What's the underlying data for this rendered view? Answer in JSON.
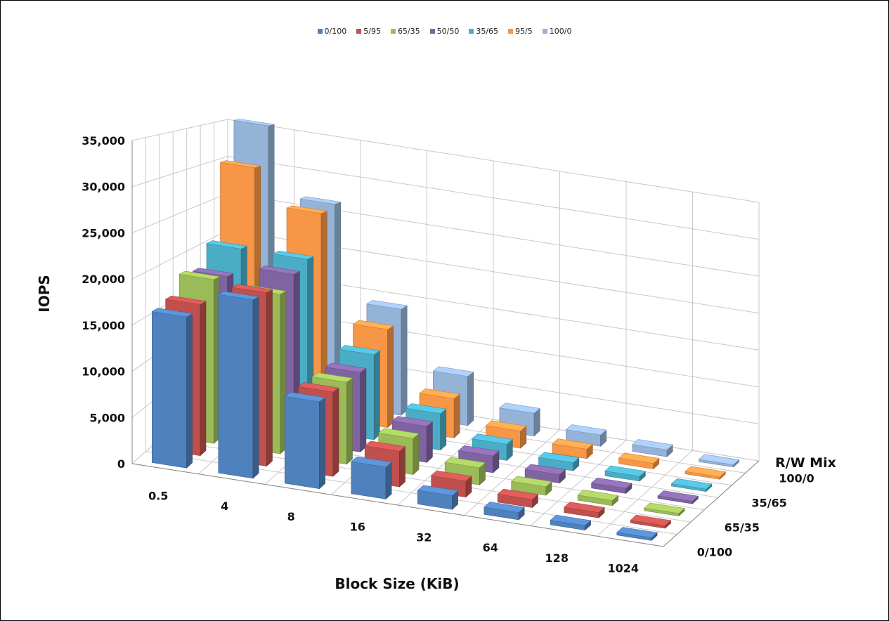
{
  "chart_data": {
    "type": "bar",
    "subtype": "3d-column",
    "title": "",
    "xlabel": "Block Size (KiB)",
    "ylabel": "IOPS",
    "zlabel": "R/W Mix",
    "categories": [
      "0.5",
      "4",
      "8",
      "16",
      "32",
      "64",
      "128",
      "1024"
    ],
    "depth_tick_labels": [
      "0/100",
      "65/35",
      "35/65",
      "100/0"
    ],
    "ylim": [
      0,
      35000
    ],
    "yticks": [
      "0",
      "5,000",
      "10,000",
      "15,000",
      "20,000",
      "25,000",
      "30,000",
      "35,000"
    ],
    "grid": true,
    "legend_position": "top",
    "series": [
      {
        "name": "0/100",
        "color": "#4f81bd",
        "values": [
          16500,
          19500,
          9500,
          3500,
          1500,
          800,
          500,
          300
        ]
      },
      {
        "name": "5/95",
        "color": "#c0504d",
        "values": [
          17000,
          19500,
          9500,
          4000,
          1800,
          900,
          600,
          300
        ]
      },
      {
        "name": "65/35",
        "color": "#9bbb59",
        "values": [
          19000,
          18500,
          9500,
          4200,
          2000,
          1000,
          600,
          300
        ]
      },
      {
        "name": "50/50",
        "color": "#8064a2",
        "values": [
          18500,
          20000,
          9500,
          4300,
          2000,
          1000,
          600,
          300
        ]
      },
      {
        "name": "35/65",
        "color": "#4bacc6",
        "values": [
          21000,
          21000,
          10500,
          4500,
          2000,
          1000,
          600,
          300
        ]
      },
      {
        "name": "95/5",
        "color": "#f79646",
        "values": [
          30500,
          26000,
          12500,
          5000,
          2200,
          1200,
          700,
          300
        ]
      },
      {
        "name": "100/0",
        "color": "#95b3d7",
        "values": [
          35500,
          26500,
          14000,
          6500,
          3000,
          1500,
          900,
          300
        ]
      }
    ]
  }
}
